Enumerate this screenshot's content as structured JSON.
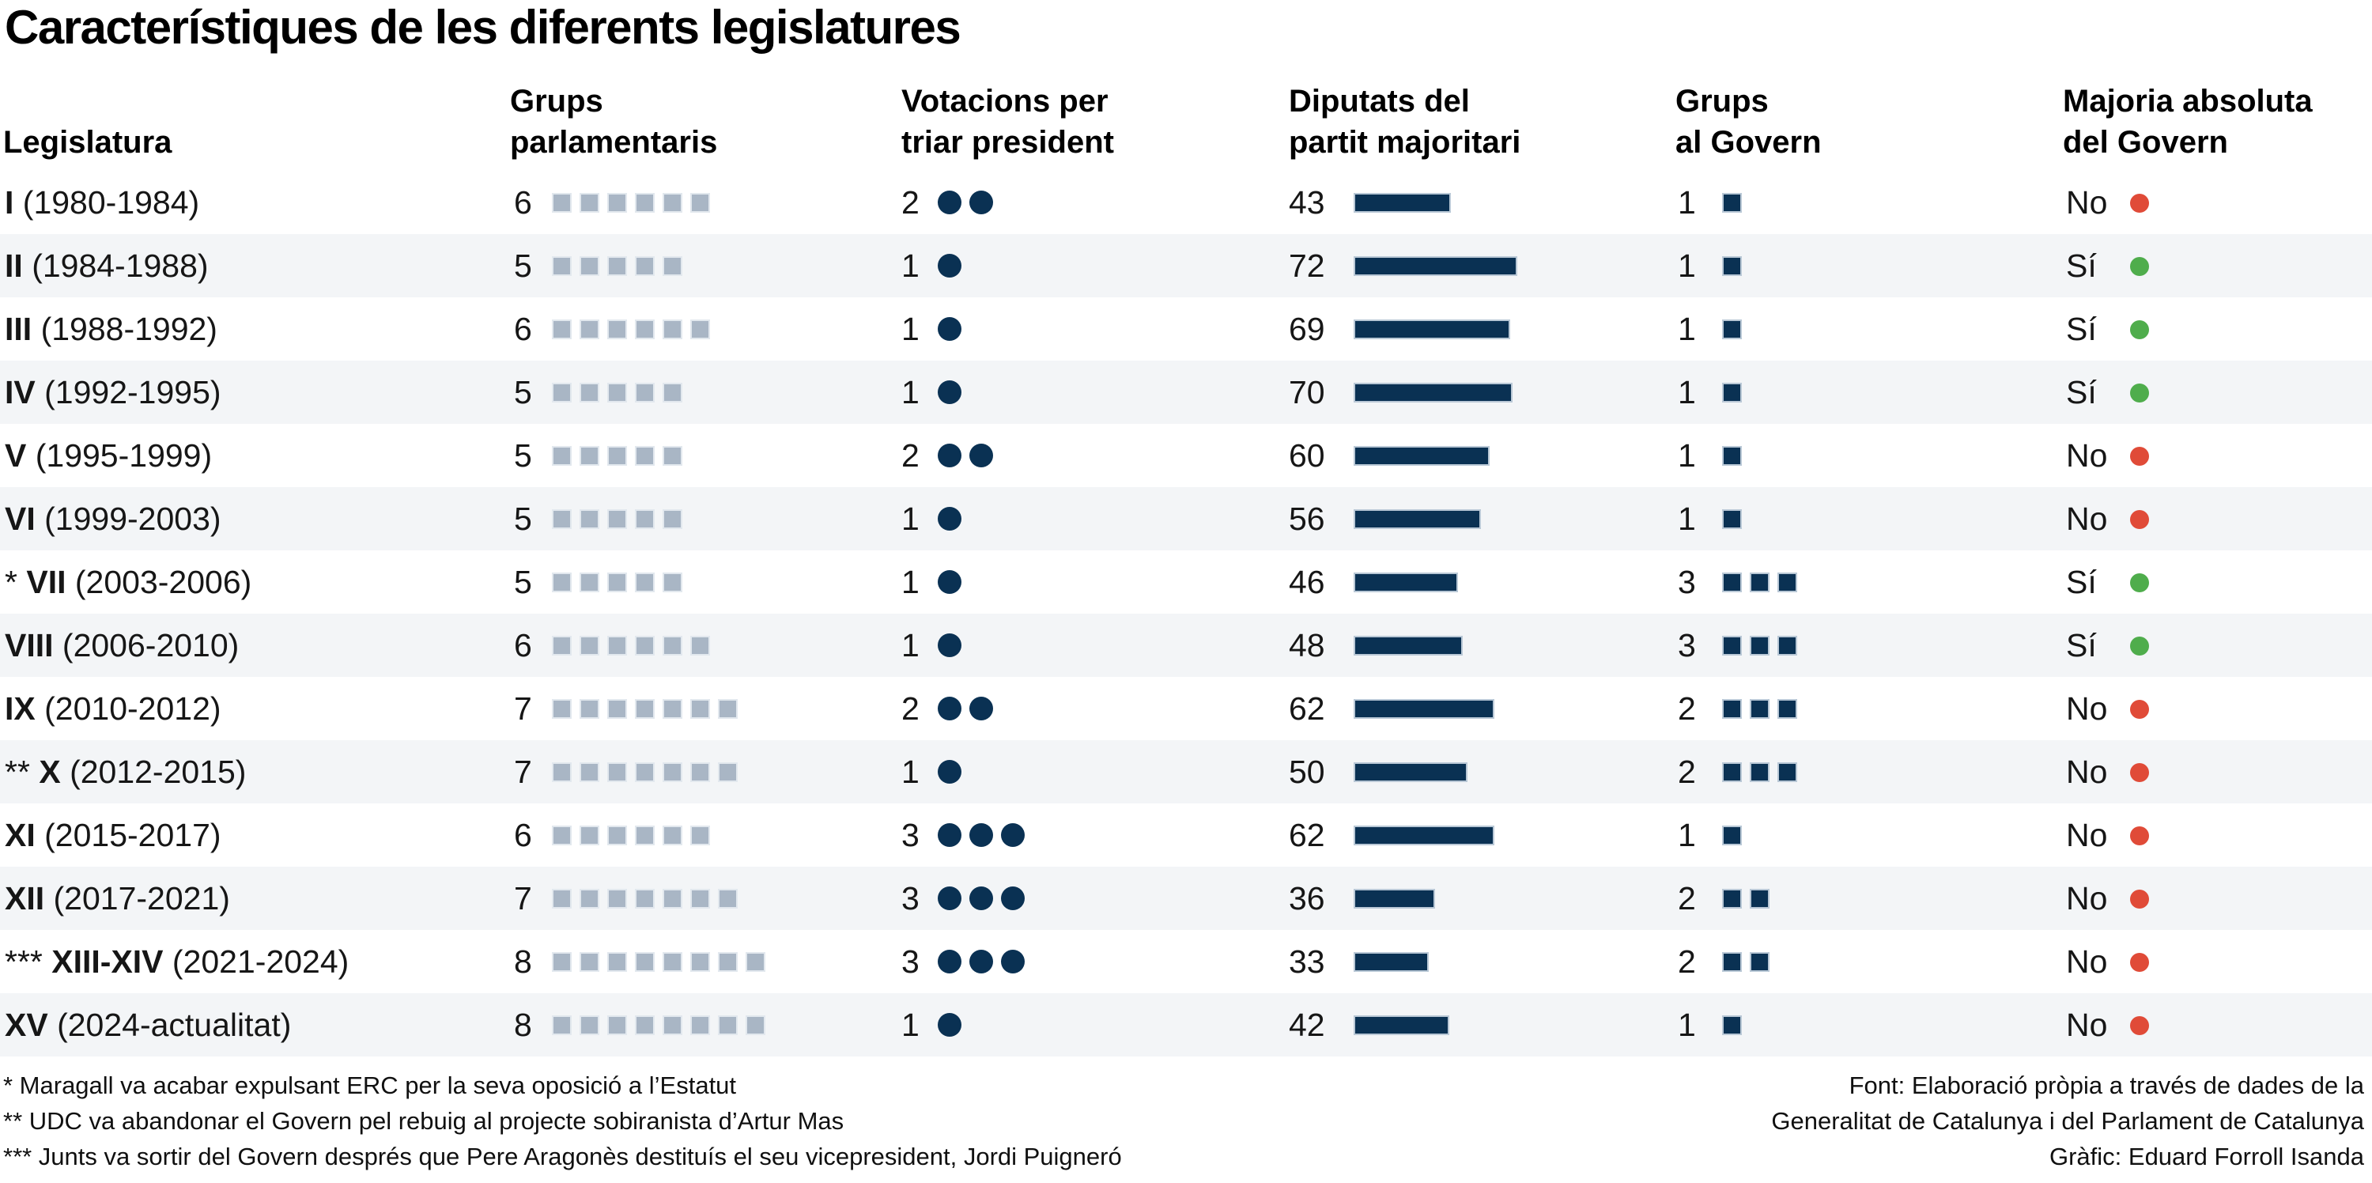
{
  "title": "Característiques de les diferents legislatures",
  "columns": [
    {
      "key": "legislatura",
      "label": "Legislatura"
    },
    {
      "key": "grups_parlamentaris",
      "label": "Grups\nparlamentaris"
    },
    {
      "key": "votacions",
      "label": "Votacions per\ntriar president"
    },
    {
      "key": "diputats",
      "label": "Diputats del\npartit majoritari"
    },
    {
      "key": "grups_govern",
      "label": "Grups\nal Govern"
    },
    {
      "key": "majoria",
      "label": "Majoria absoluta\ndel Govern"
    }
  ],
  "rows": [
    {
      "prefix": "",
      "numeral": "I",
      "years": "(1980-1984)",
      "grups_parlamentaris": 6,
      "votacions": 2,
      "diputats": 43,
      "grups_govern": 1,
      "grups_govern_marks": 1,
      "majoria": "No"
    },
    {
      "prefix": "",
      "numeral": "II",
      "years": "(1984-1988)",
      "grups_parlamentaris": 5,
      "votacions": 1,
      "diputats": 72,
      "grups_govern": 1,
      "grups_govern_marks": 1,
      "majoria": "Sí"
    },
    {
      "prefix": "",
      "numeral": "III",
      "years": "(1988-1992)",
      "grups_parlamentaris": 6,
      "votacions": 1,
      "diputats": 69,
      "grups_govern": 1,
      "grups_govern_marks": 1,
      "majoria": "Sí"
    },
    {
      "prefix": "",
      "numeral": "IV",
      "years": "(1992-1995)",
      "grups_parlamentaris": 5,
      "votacions": 1,
      "diputats": 70,
      "grups_govern": 1,
      "grups_govern_marks": 1,
      "majoria": "Sí"
    },
    {
      "prefix": "",
      "numeral": "V",
      "years": "(1995-1999)",
      "grups_parlamentaris": 5,
      "votacions": 2,
      "diputats": 60,
      "grups_govern": 1,
      "grups_govern_marks": 1,
      "majoria": "No"
    },
    {
      "prefix": "",
      "numeral": "VI",
      "years": "(1999-2003)",
      "grups_parlamentaris": 5,
      "votacions": 1,
      "diputats": 56,
      "grups_govern": 1,
      "grups_govern_marks": 1,
      "majoria": "No"
    },
    {
      "prefix": "*",
      "numeral": "VII",
      "years": "(2003-2006)",
      "grups_parlamentaris": 5,
      "votacions": 1,
      "diputats": 46,
      "grups_govern": 3,
      "grups_govern_marks": 3,
      "majoria": "Sí"
    },
    {
      "prefix": "",
      "numeral": "VIII",
      "years": "(2006-2010)",
      "grups_parlamentaris": 6,
      "votacions": 1,
      "diputats": 48,
      "grups_govern": 3,
      "grups_govern_marks": 3,
      "majoria": "Sí"
    },
    {
      "prefix": "",
      "numeral": "IX",
      "years": "(2010-2012)",
      "grups_parlamentaris": 7,
      "votacions": 2,
      "diputats": 62,
      "grups_govern": 2,
      "grups_govern_marks": 3,
      "majoria": "No"
    },
    {
      "prefix": "**",
      "numeral": "X",
      "years": "(2012-2015)",
      "grups_parlamentaris": 7,
      "votacions": 1,
      "diputats": 50,
      "grups_govern": 2,
      "grups_govern_marks": 3,
      "majoria": "No"
    },
    {
      "prefix": "",
      "numeral": "XI",
      "years": "(2015-2017)",
      "grups_parlamentaris": 6,
      "votacions": 3,
      "diputats": 62,
      "grups_govern": 1,
      "grups_govern_marks": 1,
      "majoria": "No"
    },
    {
      "prefix": "",
      "numeral": "XII",
      "years": "(2017-2021)",
      "grups_parlamentaris": 7,
      "votacions": 3,
      "diputats": 36,
      "grups_govern": 2,
      "grups_govern_marks": 2,
      "majoria": "No"
    },
    {
      "prefix": "***",
      "numeral": "XIII-XIV",
      "years": "(2021-2024)",
      "grups_parlamentaris": 8,
      "votacions": 3,
      "diputats": 33,
      "grups_govern": 2,
      "grups_govern_marks": 2,
      "majoria": "No"
    },
    {
      "prefix": "",
      "numeral": "XV",
      "years": "(2024-actualitat)",
      "grups_parlamentaris": 8,
      "votacions": 1,
      "diputats": 42,
      "grups_govern": 1,
      "grups_govern_marks": 1,
      "majoria": "No"
    }
  ],
  "footnotes": [
    "* Maragall va acabar expulsant ERC per la seva oposició a l’Estatut",
    "** UDC va abandonar el Govern pel rebuig al projecte sobiranista d’Artur Mas",
    "*** Junts va sortir del Govern després que Pere Aragonès destituís el seu vicepresident, Jordi Puigneró"
  ],
  "source_lines": [
    "Font: Elaboració pròpia a través de dades de la",
    "Generalitat de Catalunya i del Parlament de Catalunya",
    "Gràfic: Eduard Forroll Isanda"
  ],
  "majoria_values": {
    "yes": "Sí",
    "no": "No"
  },
  "colors": {
    "navy": "#0a3153",
    "gray_blue_square": "#a9b6c5",
    "gray_square_border": "#e2e8ee",
    "row_alt_background": "#f3f5f7",
    "red_dot": "#e04b38",
    "green_dot": "#4fad4c",
    "text": "#111111"
  },
  "chart_data": {
    "type": "table",
    "title": "Característiques de les diferents legislatures",
    "categories": [
      "I (1980-1984)",
      "II (1984-1988)",
      "III (1988-1992)",
      "IV (1992-1995)",
      "V (1995-1999)",
      "VI (1999-2003)",
      "* VII (2003-2006)",
      "VIII (2006-2010)",
      "IX (2010-2012)",
      "** X (2012-2015)",
      "XI (2015-2017)",
      "XII (2017-2021)",
      "*** XIII-XIV (2021-2024)",
      "XV (2024-actualitat)"
    ],
    "series": [
      {
        "name": "Grups parlamentaris",
        "values": [
          6,
          5,
          6,
          5,
          5,
          5,
          5,
          6,
          7,
          7,
          6,
          7,
          8,
          8
        ]
      },
      {
        "name": "Votacions per triar president",
        "values": [
          2,
          1,
          1,
          1,
          2,
          1,
          1,
          1,
          2,
          1,
          3,
          3,
          3,
          1
        ]
      },
      {
        "name": "Diputats del partit majoritari",
        "values": [
          43,
          72,
          69,
          70,
          60,
          56,
          46,
          48,
          62,
          50,
          62,
          36,
          33,
          42
        ]
      },
      {
        "name": "Grups al Govern",
        "values": [
          1,
          1,
          1,
          1,
          1,
          1,
          3,
          3,
          2,
          2,
          1,
          2,
          2,
          1
        ]
      },
      {
        "name": "Majoria absoluta del Govern",
        "values": [
          "No",
          "Sí",
          "Sí",
          "Sí",
          "No",
          "No",
          "Sí",
          "Sí",
          "No",
          "No",
          "No",
          "No",
          "No",
          "No"
        ]
      }
    ],
    "layout_hints": {
      "zebra_striping": true,
      "bar_pixels_per_diputat_at_3000px": 2.87,
      "marker_styles": {
        "grups_parlamentaris": "light-blue-gray squares",
        "votacions": "navy circles",
        "diputats": "navy horizontal bar",
        "grups_govern": "navy squares",
        "majoria": "red dot = No, green dot = Sí"
      }
    }
  }
}
